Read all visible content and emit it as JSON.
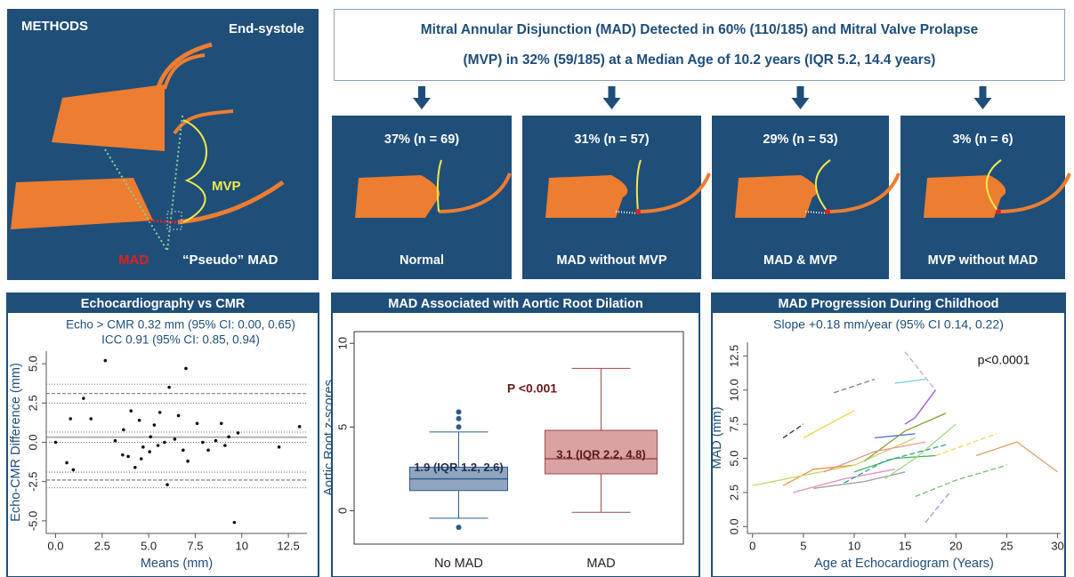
{
  "methods": {
    "title": "METHODS",
    "phase": "End-systole",
    "mvp_label": "MVP",
    "mad_label": "MAD",
    "pseudo_label": "“Pseudo” MAD"
  },
  "summary": {
    "lines": [
      "Mitral Annular Disjunction (MAD) Detected in 60% (110/185) and Mitral Valve Prolapse",
      "(MVP) in 32% (59/185) at a Median Age of 10.2 years (IQR 5.2, 14.4 years)"
    ]
  },
  "groups": [
    {
      "stat": "37% (n = 69)",
      "label": "Normal"
    },
    {
      "stat": "31% (n = 57)",
      "label": "MAD without MVP"
    },
    {
      "stat": "29% (n = 53)",
      "label": "MAD & MVP"
    },
    {
      "stat": "3% (n = 6)",
      "label": "MVP without MAD"
    }
  ],
  "chart_data": [
    {
      "type": "scatter",
      "title": "Echocardiography vs CMR",
      "annotations": [
        "Echo > CMR 0.32 mm (95% CI: 0.00, 0.65)",
        "ICC 0.91 (95% CI: 0.85, 0.94)"
      ],
      "x_label": "Means (mm)",
      "y_label": "Echo-CMR Difference (mm)",
      "xlim": [
        -0.5,
        13.5
      ],
      "ylim": [
        -5.8,
        5.8
      ],
      "xticks": [
        {
          "value": 0,
          "label": "0.0"
        },
        2.5,
        {
          "value": 5,
          "label": "5.0"
        },
        7.5,
        10,
        12.5
      ],
      "yticks": [
        {
          "value": -5,
          "label": "-5.0"
        },
        -2.5,
        {
          "value": 0,
          "label": "0.0"
        },
        2.5,
        {
          "value": 5,
          "label": "5.0"
        }
      ],
      "color": "#111111",
      "x": [
        2.67,
        7.0,
        1.5,
        6.1,
        0.8,
        1.9,
        0,
        0.6,
        0.95,
        4.05,
        4.5,
        5.6,
        6.6,
        7.6,
        8.9,
        9.8,
        13.1,
        3.65,
        3.9,
        4.27,
        4.6,
        5.1,
        5.5,
        6.0,
        7.1,
        7.9,
        8.6,
        9.1,
        9.6,
        12.0,
        3.2,
        4.7,
        5.85,
        6.4,
        6.85,
        8.2,
        5.05,
        5.3,
        3.6,
        9.3
      ],
      "values": [
        5.2,
        4.7,
        2.8,
        3.5,
        1.5,
        1.5,
        0,
        -1.3,
        -1.75,
        2.0,
        1.4,
        1.9,
        1.7,
        1.2,
        1.2,
        0.6,
        1.0,
        0.8,
        -0.9,
        -1.6,
        -1.05,
        0.35,
        -0.2,
        -2.7,
        -1.2,
        0,
        0.1,
        -0.2,
        -5.1,
        -0.3,
        0.1,
        -0.3,
        0,
        0.2,
        -0.5,
        -0.5,
        -0.6,
        1.1,
        -0.8,
        0.35
      ],
      "bias": 0.32,
      "bias_ci": [
        0.0,
        0.65
      ],
      "loa": [
        3.1,
        -2.4
      ],
      "loa_ci": [
        3.7,
        2.5,
        -1.9,
        -2.9
      ]
    },
    {
      "type": "box",
      "title": "MAD Associated with Aortic Root Dilation",
      "y_label": "Aortic Root z-scores",
      "annotations": [
        "P <0.001"
      ],
      "categories": [
        "No MAD",
        "MAD"
      ],
      "ylim": [
        -2.0,
        10.7
      ],
      "yticks": [
        0,
        5,
        10
      ],
      "boxes": [
        {
          "whislo": -0.45,
          "q1": 1.2,
          "med": 1.9,
          "q3": 2.6,
          "whishi": 4.7,
          "fliers": [
            5.0,
            5.5,
            5.9,
            -1.0
          ],
          "label": "1.9 (IQR 1.2, 2.6)",
          "color": "#8fa5c0",
          "edgecolor": "#2f5b8c"
        },
        {
          "whislo": -0.1,
          "q1": 2.2,
          "med": 3.1,
          "q3": 4.8,
          "whishi": 8.5,
          "fliers": [],
          "label": "3.1 (IQR 2.2, 4.8)",
          "color": "#d9a3a3",
          "edgecolor": "#a0484b"
        }
      ]
    },
    {
      "type": "line",
      "title": "MAD Progression During Childhood",
      "annotations": [
        "Slope +0.18 mm/year (95% CI 0.14, 0.22)",
        "p<0.0001"
      ],
      "x_label": "Age at Echocardiogram (Years)",
      "y_label": "MAD (mm)",
      "xlim": [
        -0.5,
        30.3
      ],
      "ylim": [
        -0.5,
        13.5
      ],
      "xticks": [
        0,
        5,
        10,
        15,
        20,
        25,
        30
      ],
      "yticks": [
        {
          "value": 0,
          "label": "0.0"
        },
        2.5,
        {
          "value": 5,
          "label": "5.0"
        },
        7.5,
        {
          "value": 10,
          "label": "10.0"
        },
        12.5
      ],
      "series": [
        {
          "color": "#e8964a",
          "dashed": false,
          "x": [
            3,
            6,
            10
          ],
          "values": [
            3.0,
            4.2,
            4.5
          ]
        },
        {
          "color": "#c8d46a",
          "dashed": false,
          "x": [
            0,
            10,
            16
          ],
          "values": [
            3.0,
            4.5,
            6.5
          ]
        },
        {
          "color": "#f2d34e",
          "dashed": false,
          "x": [
            5,
            10
          ],
          "values": [
            6.5,
            8.5
          ]
        },
        {
          "color": "#808080",
          "dashed": true,
          "x": [
            8,
            12
          ],
          "values": [
            9.8,
            10.8
          ]
        },
        {
          "color": "#c5a8e6",
          "dashed": true,
          "x": [
            15,
            18
          ],
          "values": [
            12.8,
            10.0
          ]
        },
        {
          "color": "#9b59d0",
          "dashed": false,
          "x": [
            15,
            16,
            18
          ],
          "values": [
            7.5,
            8.0,
            10.0
          ]
        },
        {
          "color": "#d4a56a",
          "dashed": false,
          "x": [
            22,
            26,
            30
          ],
          "values": [
            5.2,
            6.2,
            4.0
          ]
        },
        {
          "color": "#b48fd8",
          "dashed": true,
          "x": [
            17,
            19.5
          ],
          "values": [
            0.3,
            2.6
          ]
        },
        {
          "color": "#333333",
          "dashed": true,
          "x": [
            3,
            5
          ],
          "values": [
            6.5,
            7.5
          ]
        },
        {
          "color": "#4caf50",
          "dashed": false,
          "x": [
            10,
            14,
            18
          ],
          "values": [
            4.0,
            5.0,
            5.2
          ]
        },
        {
          "color": "#4a6fd0",
          "dashed": false,
          "x": [
            12,
            16
          ],
          "values": [
            6.5,
            6.8
          ]
        },
        {
          "color": "#7ec8e3",
          "dashed": false,
          "x": [
            14,
            17
          ],
          "values": [
            10.5,
            10.8
          ]
        },
        {
          "color": "#e48fb8",
          "dashed": false,
          "x": [
            4,
            9,
            14
          ],
          "values": [
            2.5,
            3.5,
            4.2
          ]
        },
        {
          "color": "#2aa198",
          "dashed": true,
          "x": [
            9,
            13,
            19
          ],
          "values": [
            3.2,
            4.8,
            6.0
          ]
        },
        {
          "color": "#ecd96a",
          "dashed": true,
          "x": [
            18,
            24
          ],
          "values": [
            5.2,
            6.8
          ]
        },
        {
          "color": "#9e9e9e",
          "dashed": false,
          "x": [
            6,
            11,
            15
          ],
          "values": [
            2.8,
            3.3,
            4.0
          ]
        },
        {
          "color": "#8c9a3a",
          "dashed": false,
          "x": [
            11,
            15,
            19
          ],
          "values": [
            4.8,
            7.0,
            8.3
          ]
        },
        {
          "color": "#a5d68a",
          "dashed": false,
          "x": [
            13,
            16,
            20
          ],
          "values": [
            3.5,
            5.0,
            7.5
          ]
        },
        {
          "color": "#e59a8a",
          "dashed": false,
          "x": [
            7,
            12,
            17
          ],
          "values": [
            4.0,
            5.5,
            6.2
          ]
        },
        {
          "color": "#6fbf73",
          "dashed": true,
          "x": [
            16,
            20,
            25
          ],
          "values": [
            2.2,
            3.4,
            4.5
          ]
        }
      ]
    }
  ]
}
